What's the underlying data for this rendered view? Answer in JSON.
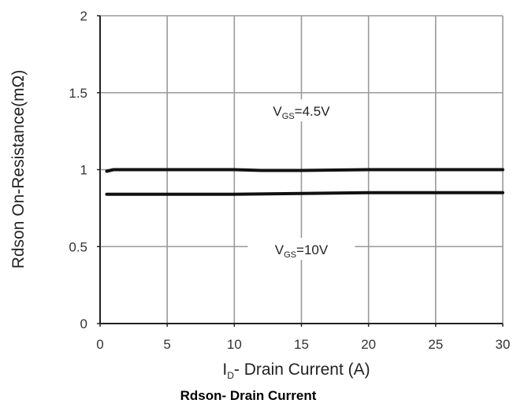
{
  "chart_data": {
    "type": "line",
    "title": "Rdson- Drain Current",
    "xlabel": {
      "main": "I",
      "sub": "D",
      "rest": "- Drain Current (A)"
    },
    "ylabel": "Rdson On-Resistance(mΩ)",
    "xlim": [
      0,
      30
    ],
    "ylim": [
      0,
      2
    ],
    "xticks": [
      "0",
      "5",
      "10",
      "15",
      "20",
      "25",
      "30"
    ],
    "yticks": [
      "0",
      "0.5",
      "1",
      "1.5",
      "2"
    ],
    "xtick_values": [
      0,
      5,
      10,
      15,
      20,
      25,
      30
    ],
    "ytick_values": [
      0,
      0.5,
      1,
      1.5,
      2
    ],
    "grid": true,
    "series": [
      {
        "x": [
          0.5,
          1,
          2,
          5,
          8,
          10,
          12,
          15,
          20,
          25,
          30
        ],
        "y": [
          0.99,
          1.0,
          1.0,
          1.0,
          1.0,
          1.0,
          0.995,
          0.995,
          1.0,
          1.0,
          1.0
        ],
        "color": "#111111",
        "annotation": {
          "main": "V",
          "sub": "GS",
          "rest": "=4.5V",
          "x": 15,
          "y": 1.37
        }
      },
      {
        "x": [
          0.5,
          2,
          5,
          10,
          15,
          20,
          25,
          30
        ],
        "y": [
          0.84,
          0.84,
          0.84,
          0.84,
          0.845,
          0.85,
          0.85,
          0.85
        ],
        "color": "#111111",
        "annotation": {
          "main": "V",
          "sub": "GS",
          "rest": "=10V",
          "x": 15,
          "y": 0.47
        }
      }
    ]
  }
}
